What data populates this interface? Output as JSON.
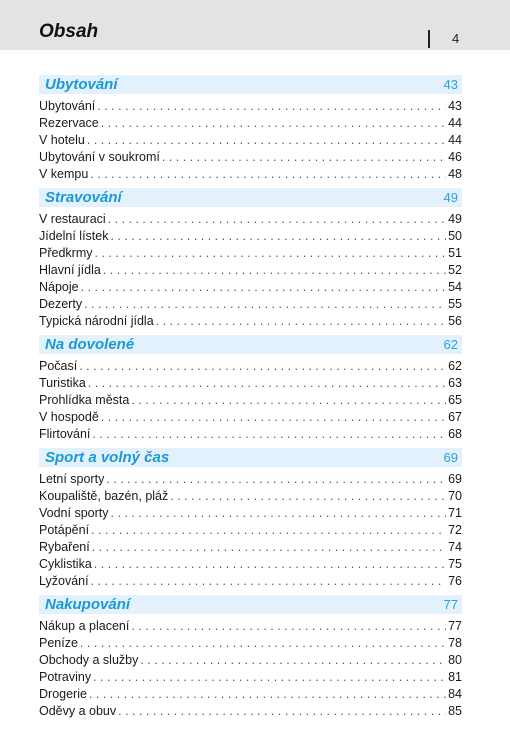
{
  "header": {
    "title": "Obsah",
    "page_number": "4"
  },
  "sections": [
    {
      "title": "Ubytování",
      "page": "43",
      "entries": [
        {
          "label": "Ubytování",
          "page": "43"
        },
        {
          "label": "Rezervace",
          "page": "44"
        },
        {
          "label": "V hotelu",
          "page": "44"
        },
        {
          "label": "Ubytování v soukromí",
          "page": "46"
        },
        {
          "label": "V kempu",
          "page": "48"
        }
      ]
    },
    {
      "title": "Stravování",
      "page": "49",
      "entries": [
        {
          "label": "V restauraci",
          "page": "49"
        },
        {
          "label": "Jídelní lístek",
          "page": "50"
        },
        {
          "label": "Předkrmy",
          "page": "51"
        },
        {
          "label": "Hlavní jídla",
          "page": "52"
        },
        {
          "label": "Nápoje",
          "page": "54"
        },
        {
          "label": "Dezerty",
          "page": "55"
        },
        {
          "label": "Typická národní jídla",
          "page": "56"
        }
      ]
    },
    {
      "title": "Na dovolené",
      "page": "62",
      "entries": [
        {
          "label": "Počasí",
          "page": "62"
        },
        {
          "label": "Turistika",
          "page": "63"
        },
        {
          "label": "Prohlídka města",
          "page": "65"
        },
        {
          "label": "V hospodě",
          "page": "67"
        },
        {
          "label": "Flirtování",
          "page": "68"
        }
      ]
    },
    {
      "title": "Sport a volný čas",
      "page": "69",
      "entries": [
        {
          "label": "Letní sporty",
          "page": "69"
        },
        {
          "label": "Koupaliště, bazén, pláž",
          "page": "70"
        },
        {
          "label": "Vodní sporty",
          "page": "71"
        },
        {
          "label": "Potápění",
          "page": "72"
        },
        {
          "label": "Rybaření",
          "page": "74"
        },
        {
          "label": "Cyklistika",
          "page": "75"
        },
        {
          "label": "Lyžování",
          "page": "76"
        }
      ]
    },
    {
      "title": "Nakupování",
      "page": "77",
      "entries": [
        {
          "label": "Nákup a placení",
          "page": "77"
        },
        {
          "label": "Peníze",
          "page": "78"
        },
        {
          "label": "Obchody a služby",
          "page": "80"
        },
        {
          "label": "Potraviny",
          "page": "81"
        },
        {
          "label": "Drogerie",
          "page": "84"
        },
        {
          "label": "Oděvy a obuv",
          "page": "85"
        }
      ]
    }
  ]
}
